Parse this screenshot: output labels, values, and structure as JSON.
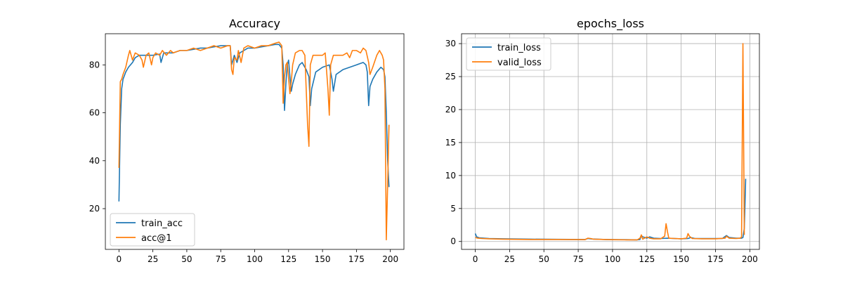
{
  "chart_data": [
    {
      "type": "line",
      "title": "Accuracy",
      "xlabel": "",
      "ylabel": "",
      "xlim": [
        -10,
        210
      ],
      "ylim": [
        3,
        93
      ],
      "xticks": [
        0,
        25,
        50,
        75,
        100,
        125,
        150,
        175,
        200
      ],
      "yticks": [
        20,
        40,
        60,
        80
      ],
      "grid": false,
      "legend": "bottom-left",
      "series": [
        {
          "name": "train_acc",
          "color": "#1f77b4",
          "points": [
            [
              0,
              23
            ],
            [
              1,
              55
            ],
            [
              2,
              70
            ],
            [
              3,
              74
            ],
            [
              5,
              77
            ],
            [
              7,
              79
            ],
            [
              10,
              81
            ],
            [
              12,
              83
            ],
            [
              15,
              84
            ],
            [
              20,
              84
            ],
            [
              25,
              84
            ],
            [
              30,
              84.5
            ],
            [
              31,
              81
            ],
            [
              33,
              85
            ],
            [
              40,
              85
            ],
            [
              45,
              86
            ],
            [
              50,
              86
            ],
            [
              55,
              86.5
            ],
            [
              60,
              87
            ],
            [
              65,
              87
            ],
            [
              70,
              87.5
            ],
            [
              75,
              88
            ],
            [
              80,
              88
            ],
            [
              82,
              88
            ],
            [
              83,
              80
            ],
            [
              85,
              84
            ],
            [
              87,
              81
            ],
            [
              89,
              85
            ],
            [
              92,
              86
            ],
            [
              95,
              87
            ],
            [
              100,
              87
            ],
            [
              105,
              87.5
            ],
            [
              110,
              88
            ],
            [
              115,
              88.5
            ],
            [
              118,
              88.5
            ],
            [
              120,
              87
            ],
            [
              121,
              80
            ],
            [
              122,
              61
            ],
            [
              123,
              72
            ],
            [
              124,
              80
            ],
            [
              125,
              82
            ],
            [
              126,
              75
            ],
            [
              127,
              69
            ],
            [
              128,
              72
            ],
            [
              130,
              76
            ],
            [
              133,
              80
            ],
            [
              135,
              81
            ],
            [
              138,
              78
            ],
            [
              140,
              75
            ],
            [
              141,
              63
            ],
            [
              142,
              70
            ],
            [
              145,
              77
            ],
            [
              150,
              79
            ],
            [
              155,
              80
            ],
            [
              157,
              74
            ],
            [
              158,
              69
            ],
            [
              160,
              76
            ],
            [
              165,
              78
            ],
            [
              170,
              79
            ],
            [
              175,
              80
            ],
            [
              180,
              81
            ],
            [
              182,
              80
            ],
            [
              183,
              77
            ],
            [
              184,
              63
            ],
            [
              185,
              71
            ],
            [
              187,
              74
            ],
            [
              190,
              77
            ],
            [
              193,
              79
            ],
            [
              195,
              78
            ],
            [
              196,
              75
            ],
            [
              197,
              60
            ],
            [
              198,
              40
            ],
            [
              199,
              29
            ]
          ]
        },
        {
          "name": "acc@1",
          "color": "#ff7f0e",
          "points": [
            [
              0,
              37
            ],
            [
              1,
              73
            ],
            [
              2,
              74
            ],
            [
              3,
              76
            ],
            [
              5,
              79
            ],
            [
              7,
              84
            ],
            [
              8,
              86
            ],
            [
              10,
              82
            ],
            [
              12,
              85
            ],
            [
              15,
              84
            ],
            [
              17,
              82
            ],
            [
              18,
              79
            ],
            [
              20,
              84
            ],
            [
              22,
              85
            ],
            [
              24,
              80
            ],
            [
              25,
              83
            ],
            [
              27,
              85
            ],
            [
              30,
              84
            ],
            [
              32,
              86
            ],
            [
              35,
              84
            ],
            [
              38,
              86
            ],
            [
              40,
              85
            ],
            [
              45,
              86
            ],
            [
              50,
              86
            ],
            [
              55,
              87
            ],
            [
              60,
              86
            ],
            [
              65,
              87
            ],
            [
              70,
              88
            ],
            [
              75,
              87
            ],
            [
              80,
              88
            ],
            [
              82,
              88
            ],
            [
              83,
              78
            ],
            [
              84,
              76
            ],
            [
              85,
              83
            ],
            [
              87,
              82
            ],
            [
              88,
              86
            ],
            [
              90,
              81
            ],
            [
              92,
              87
            ],
            [
              95,
              88
            ],
            [
              100,
              87
            ],
            [
              105,
              88
            ],
            [
              110,
              88
            ],
            [
              115,
              89
            ],
            [
              118,
              89.5
            ],
            [
              120,
              88
            ],
            [
              121,
              64
            ],
            [
              122,
              75
            ],
            [
              123,
              80
            ],
            [
              124,
              81
            ],
            [
              126,
              68
            ],
            [
              127,
              73
            ],
            [
              128,
              80
            ],
            [
              130,
              85
            ],
            [
              133,
              86
            ],
            [
              135,
              86
            ],
            [
              137,
              84
            ],
            [
              139,
              55
            ],
            [
              140,
              46
            ],
            [
              141,
              80
            ],
            [
              143,
              84
            ],
            [
              145,
              84
            ],
            [
              150,
              84
            ],
            [
              152,
              85
            ],
            [
              154,
              70
            ],
            [
              155,
              59
            ],
            [
              156,
              80
            ],
            [
              158,
              84
            ],
            [
              160,
              84
            ],
            [
              165,
              84
            ],
            [
              168,
              85
            ],
            [
              170,
              83
            ],
            [
              172,
              86
            ],
            [
              175,
              86
            ],
            [
              178,
              85
            ],
            [
              180,
              87
            ],
            [
              182,
              86
            ],
            [
              184,
              81
            ],
            [
              185,
              76
            ],
            [
              187,
              79
            ],
            [
              190,
              84
            ],
            [
              192,
              86
            ],
            [
              194,
              84
            ],
            [
              195,
              82
            ],
            [
              196,
              70
            ],
            [
              197,
              7
            ],
            [
              198,
              30
            ],
            [
              199,
              55
            ]
          ]
        }
      ]
    },
    {
      "type": "line",
      "title": "epochs_loss",
      "xlabel": "",
      "ylabel": "",
      "xlim": [
        -10,
        207
      ],
      "ylim": [
        -1.2,
        31.5
      ],
      "xticks": [
        0,
        25,
        50,
        75,
        100,
        125,
        150,
        175,
        200
      ],
      "yticks": [
        0,
        5,
        10,
        15,
        20,
        25,
        30
      ],
      "grid": true,
      "legend": "top-left",
      "series": [
        {
          "name": "train_loss",
          "color": "#1f77b4",
          "points": [
            [
              0,
              1.2
            ],
            [
              1,
              0.7
            ],
            [
              3,
              0.55
            ],
            [
              10,
              0.45
            ],
            [
              20,
              0.4
            ],
            [
              40,
              0.35
            ],
            [
              60,
              0.33
            ],
            [
              80,
              0.3
            ],
            [
              82,
              0.45
            ],
            [
              85,
              0.38
            ],
            [
              95,
              0.3
            ],
            [
              100,
              0.28
            ],
            [
              110,
              0.27
            ],
            [
              118,
              0.25
            ],
            [
              120,
              0.3
            ],
            [
              121,
              0.9
            ],
            [
              122,
              0.7
            ],
            [
              125,
              0.5
            ],
            [
              127,
              0.7
            ],
            [
              130,
              0.5
            ],
            [
              135,
              0.45
            ],
            [
              140,
              0.5
            ],
            [
              145,
              0.45
            ],
            [
              150,
              0.4
            ],
            [
              155,
              0.45
            ],
            [
              157,
              0.6
            ],
            [
              160,
              0.45
            ],
            [
              170,
              0.45
            ],
            [
              180,
              0.45
            ],
            [
              183,
              0.9
            ],
            [
              185,
              0.6
            ],
            [
              190,
              0.5
            ],
            [
              194,
              0.5
            ],
            [
              195,
              0.6
            ],
            [
              196,
              2
            ],
            [
              197,
              9.5
            ]
          ]
        },
        {
          "name": "valid_loss",
          "color": "#ff7f0e",
          "points": [
            [
              0,
              0.6
            ],
            [
              2,
              0.5
            ],
            [
              5,
              0.45
            ],
            [
              10,
              0.4
            ],
            [
              20,
              0.35
            ],
            [
              40,
              0.3
            ],
            [
              60,
              0.3
            ],
            [
              80,
              0.28
            ],
            [
              82,
              0.5
            ],
            [
              84,
              0.45
            ],
            [
              86,
              0.35
            ],
            [
              95,
              0.3
            ],
            [
              100,
              0.27
            ],
            [
              110,
              0.25
            ],
            [
              118,
              0.25
            ],
            [
              120,
              0.5
            ],
            [
              121,
              1.0
            ],
            [
              122,
              0.35
            ],
            [
              125,
              0.7
            ],
            [
              127,
              0.5
            ],
            [
              130,
              0.4
            ],
            [
              135,
              0.4
            ],
            [
              138,
              0.8
            ],
            [
              139,
              2.7
            ],
            [
              140,
              1.5
            ],
            [
              141,
              0.5
            ],
            [
              145,
              0.45
            ],
            [
              150,
              0.4
            ],
            [
              154,
              0.5
            ],
            [
              155,
              1.2
            ],
            [
              156,
              0.8
            ],
            [
              158,
              0.45
            ],
            [
              165,
              0.4
            ],
            [
              175,
              0.4
            ],
            [
              182,
              0.5
            ],
            [
              183,
              0.8
            ],
            [
              185,
              0.5
            ],
            [
              190,
              0.45
            ],
            [
              193,
              0.5
            ],
            [
              194,
              0.7
            ],
            [
              195,
              30
            ],
            [
              196,
              1.0
            ]
          ]
        }
      ]
    }
  ]
}
